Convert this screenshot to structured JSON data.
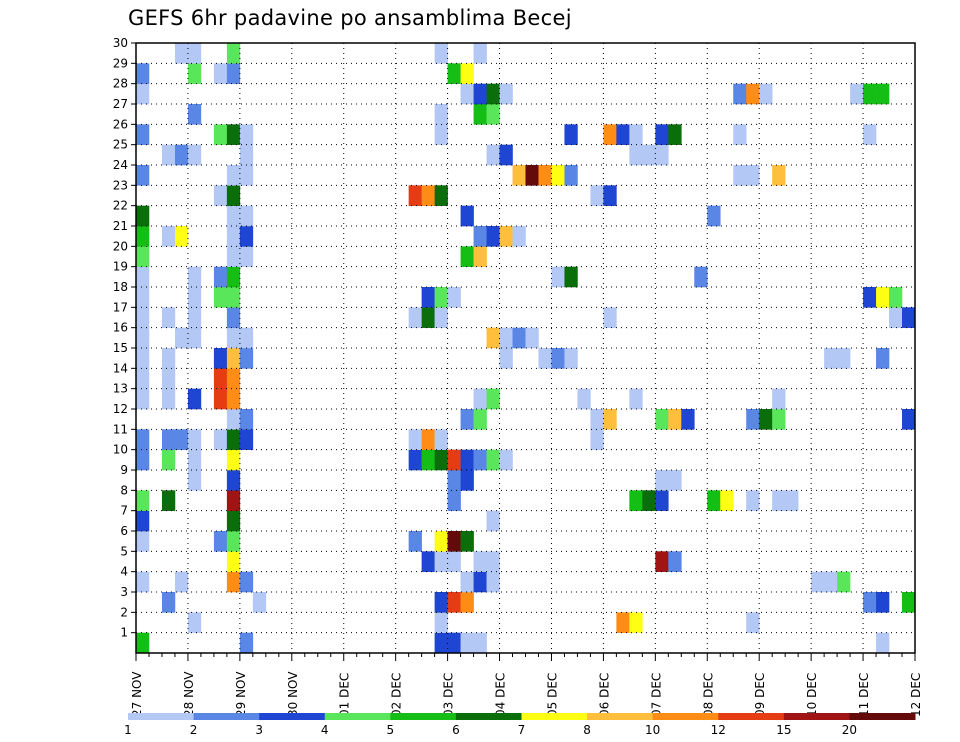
{
  "chart_data": {
    "type": "heatmap",
    "title": "GEFS 6hr padavine po ansamblima Becej",
    "xlabel": "",
    "ylabel": "",
    "x_tick_labels": [
      "27 NOV",
      "28 NOV",
      "29 NOV",
      "30 NOV",
      "01 DEC",
      "02 DEC",
      "03 DEC",
      "04 DEC",
      "05 DEC",
      "06 DEC",
      "07 DEC",
      "08 DEC",
      "09 DEC",
      "10 DEC",
      "11 DEC",
      "12 DEC"
    ],
    "y_tick_labels": [
      "1",
      "2",
      "3",
      "4",
      "5",
      "6",
      "7",
      "8",
      "9",
      "10",
      "11",
      "12",
      "13",
      "14",
      "15",
      "16",
      "17",
      "18",
      "19",
      "20",
      "21",
      "22",
      "23",
      "24",
      "25",
      "26",
      "27",
      "28",
      "29",
      "30"
    ],
    "x_range_steps": [
      0,
      60
    ],
    "y_range": [
      0,
      30
    ],
    "grid": true,
    "colorbar": {
      "tick_labels": [
        "1",
        "2",
        "3",
        "4",
        "5",
        "6",
        "7",
        "8",
        "10",
        "12",
        "15",
        "20"
      ],
      "colors": [
        "#b4c8f5",
        "#5a87e6",
        "#1e46d2",
        "#5ae65a",
        "#14be14",
        "#0a6e0a",
        "#ffff14",
        "#ffbe3c",
        "#ff8c14",
        "#e63c14",
        "#a01414",
        "#640a0a"
      ]
    },
    "cells_note": "each cell: [member, time_step(0=27 NOV 00z, 6h steps), color_class(1-12)]",
    "cells": [
      [
        1,
        0,
        5
      ],
      [
        1,
        8,
        2
      ],
      [
        1,
        23,
        3
      ],
      [
        1,
        24,
        3
      ],
      [
        1,
        25,
        1
      ],
      [
        1,
        26,
        1
      ],
      [
        1,
        57,
        1
      ],
      [
        2,
        4,
        1
      ],
      [
        2,
        23,
        1
      ],
      [
        2,
        37,
        9
      ],
      [
        2,
        38,
        7
      ],
      [
        2,
        47,
        1
      ],
      [
        3,
        2,
        2
      ],
      [
        3,
        9,
        1
      ],
      [
        3,
        23,
        3
      ],
      [
        3,
        24,
        10
      ],
      [
        3,
        25,
        9
      ],
      [
        3,
        56,
        2
      ],
      [
        3,
        57,
        3
      ],
      [
        3,
        59,
        5
      ],
      [
        4,
        0,
        1
      ],
      [
        4,
        3,
        1
      ],
      [
        4,
        7,
        9
      ],
      [
        4,
        8,
        2
      ],
      [
        4,
        25,
        1
      ],
      [
        4,
        26,
        3
      ],
      [
        4,
        27,
        1
      ],
      [
        4,
        52,
        1
      ],
      [
        4,
        53,
        1
      ],
      [
        4,
        54,
        4
      ],
      [
        5,
        7,
        7
      ],
      [
        5,
        22,
        3
      ],
      [
        5,
        23,
        1
      ],
      [
        5,
        24,
        1
      ],
      [
        5,
        26,
        1
      ],
      [
        5,
        27,
        1
      ],
      [
        5,
        40,
        11
      ],
      [
        5,
        41,
        2
      ],
      [
        6,
        0,
        1
      ],
      [
        6,
        6,
        2
      ],
      [
        6,
        7,
        4
      ],
      [
        6,
        21,
        2
      ],
      [
        6,
        23,
        7
      ],
      [
        6,
        24,
        12
      ],
      [
        6,
        25,
        6
      ],
      [
        7,
        0,
        3
      ],
      [
        7,
        7,
        6
      ],
      [
        7,
        27,
        1
      ],
      [
        8,
        0,
        4
      ],
      [
        8,
        2,
        6
      ],
      [
        8,
        7,
        11
      ],
      [
        8,
        24,
        2
      ],
      [
        8,
        38,
        5
      ],
      [
        8,
        39,
        6
      ],
      [
        8,
        40,
        3
      ],
      [
        8,
        44,
        5
      ],
      [
        8,
        45,
        7
      ],
      [
        8,
        47,
        1
      ],
      [
        8,
        49,
        1
      ],
      [
        8,
        50,
        1
      ],
      [
        9,
        4,
        1
      ],
      [
        9,
        7,
        3
      ],
      [
        9,
        24,
        2
      ],
      [
        9,
        25,
        3
      ],
      [
        9,
        40,
        1
      ],
      [
        9,
        41,
        1
      ],
      [
        10,
        0,
        2
      ],
      [
        10,
        2,
        4
      ],
      [
        10,
        4,
        1
      ],
      [
        10,
        7,
        7
      ],
      [
        10,
        21,
        3
      ],
      [
        10,
        22,
        5
      ],
      [
        10,
        23,
        6
      ],
      [
        10,
        24,
        10
      ],
      [
        10,
        25,
        3
      ],
      [
        10,
        26,
        2
      ],
      [
        10,
        27,
        4
      ],
      [
        10,
        28,
        1
      ],
      [
        11,
        0,
        2
      ],
      [
        11,
        2,
        2
      ],
      [
        11,
        3,
        2
      ],
      [
        11,
        4,
        1
      ],
      [
        11,
        6,
        1
      ],
      [
        11,
        7,
        6
      ],
      [
        11,
        8,
        3
      ],
      [
        11,
        21,
        1
      ],
      [
        11,
        22,
        9
      ],
      [
        11,
        23,
        1
      ],
      [
        11,
        35,
        1
      ],
      [
        12,
        7,
        1
      ],
      [
        12,
        8,
        2
      ],
      [
        12,
        25,
        2
      ],
      [
        12,
        26,
        4
      ],
      [
        12,
        35,
        1
      ],
      [
        12,
        36,
        8
      ],
      [
        12,
        40,
        4
      ],
      [
        12,
        41,
        8
      ],
      [
        12,
        42,
        3
      ],
      [
        12,
        47,
        2
      ],
      [
        12,
        48,
        6
      ],
      [
        12,
        49,
        4
      ],
      [
        12,
        59,
        3
      ],
      [
        13,
        0,
        1
      ],
      [
        13,
        2,
        1
      ],
      [
        13,
        4,
        3
      ],
      [
        13,
        6,
        10
      ],
      [
        13,
        7,
        9
      ],
      [
        13,
        26,
        1
      ],
      [
        13,
        27,
        4
      ],
      [
        13,
        34,
        1
      ],
      [
        13,
        38,
        1
      ],
      [
        13,
        49,
        1
      ],
      [
        14,
        0,
        1
      ],
      [
        14,
        2,
        1
      ],
      [
        14,
        6,
        10
      ],
      [
        14,
        7,
        9
      ],
      [
        15,
        0,
        1
      ],
      [
        15,
        2,
        1
      ],
      [
        15,
        6,
        3
      ],
      [
        15,
        7,
        8
      ],
      [
        15,
        8,
        2
      ],
      [
        15,
        28,
        1
      ],
      [
        15,
        31,
        1
      ],
      [
        15,
        32,
        2
      ],
      [
        15,
        33,
        1
      ],
      [
        15,
        53,
        1
      ],
      [
        15,
        54,
        1
      ],
      [
        15,
        57,
        2
      ],
      [
        16,
        0,
        1
      ],
      [
        16,
        3,
        1
      ],
      [
        16,
        4,
        1
      ],
      [
        16,
        7,
        1
      ],
      [
        16,
        8,
        1
      ],
      [
        16,
        27,
        8
      ],
      [
        16,
        28,
        1
      ],
      [
        16,
        29,
        2
      ],
      [
        16,
        30,
        1
      ],
      [
        17,
        0,
        1
      ],
      [
        17,
        2,
        1
      ],
      [
        17,
        4,
        1
      ],
      [
        17,
        7,
        2
      ],
      [
        17,
        21,
        1
      ],
      [
        17,
        22,
        6
      ],
      [
        17,
        23,
        1
      ],
      [
        17,
        36,
        1
      ],
      [
        17,
        58,
        1
      ],
      [
        17,
        59,
        3
      ],
      [
        18,
        0,
        1
      ],
      [
        18,
        4,
        1
      ],
      [
        18,
        6,
        4
      ],
      [
        18,
        7,
        4
      ],
      [
        18,
        22,
        3
      ],
      [
        18,
        23,
        4
      ],
      [
        18,
        24,
        1
      ],
      [
        18,
        56,
        3
      ],
      [
        18,
        57,
        7
      ],
      [
        18,
        58,
        4
      ],
      [
        19,
        0,
        1
      ],
      [
        19,
        4,
        1
      ],
      [
        19,
        6,
        2
      ],
      [
        19,
        7,
        5
      ],
      [
        19,
        32,
        1
      ],
      [
        19,
        33,
        6
      ],
      [
        19,
        43,
        2
      ],
      [
        20,
        0,
        4
      ],
      [
        20,
        7,
        1
      ],
      [
        20,
        8,
        1
      ],
      [
        20,
        25,
        5
      ],
      [
        20,
        26,
        8
      ],
      [
        21,
        0,
        5
      ],
      [
        21,
        2,
        1
      ],
      [
        21,
        3,
        7
      ],
      [
        21,
        7,
        1
      ],
      [
        21,
        8,
        3
      ],
      [
        21,
        26,
        2
      ],
      [
        21,
        27,
        3
      ],
      [
        21,
        28,
        8
      ],
      [
        21,
        29,
        1
      ],
      [
        22,
        0,
        6
      ],
      [
        22,
        7,
        1
      ],
      [
        22,
        8,
        1
      ],
      [
        22,
        25,
        3
      ],
      [
        22,
        44,
        2
      ],
      [
        23,
        6,
        1
      ],
      [
        23,
        7,
        6
      ],
      [
        23,
        21,
        10
      ],
      [
        23,
        22,
        9
      ],
      [
        23,
        23,
        6
      ],
      [
        23,
        35,
        1
      ],
      [
        23,
        36,
        3
      ],
      [
        24,
        0,
        2
      ],
      [
        24,
        7,
        1
      ],
      [
        24,
        8,
        1
      ],
      [
        24,
        29,
        8
      ],
      [
        24,
        30,
        12
      ],
      [
        24,
        31,
        9
      ],
      [
        24,
        32,
        7
      ],
      [
        24,
        33,
        2
      ],
      [
        24,
        46,
        1
      ],
      [
        24,
        47,
        1
      ],
      [
        24,
        49,
        8
      ],
      [
        25,
        2,
        1
      ],
      [
        25,
        3,
        2
      ],
      [
        25,
        4,
        1
      ],
      [
        25,
        8,
        1
      ],
      [
        25,
        27,
        1
      ],
      [
        25,
        28,
        3
      ],
      [
        25,
        38,
        1
      ],
      [
        25,
        39,
        1
      ],
      [
        25,
        40,
        1
      ],
      [
        26,
        0,
        2
      ],
      [
        26,
        6,
        4
      ],
      [
        26,
        7,
        6
      ],
      [
        26,
        8,
        1
      ],
      [
        26,
        23,
        1
      ],
      [
        26,
        33,
        3
      ],
      [
        26,
        36,
        9
      ],
      [
        26,
        37,
        3
      ],
      [
        26,
        38,
        1
      ],
      [
        26,
        40,
        3
      ],
      [
        26,
        41,
        6
      ],
      [
        26,
        46,
        1
      ],
      [
        26,
        56,
        1
      ],
      [
        27,
        4,
        2
      ],
      [
        27,
        23,
        1
      ],
      [
        27,
        26,
        5
      ],
      [
        27,
        27,
        4
      ],
      [
        28,
        0,
        1
      ],
      [
        28,
        25,
        1
      ],
      [
        28,
        26,
        3
      ],
      [
        28,
        27,
        6
      ],
      [
        28,
        28,
        1
      ],
      [
        28,
        46,
        2
      ],
      [
        28,
        47,
        9
      ],
      [
        28,
        48,
        1
      ],
      [
        28,
        55,
        1
      ],
      [
        28,
        56,
        5
      ],
      [
        28,
        57,
        5
      ],
      [
        29,
        0,
        2
      ],
      [
        29,
        4,
        4
      ],
      [
        29,
        6,
        1
      ],
      [
        29,
        7,
        2
      ],
      [
        29,
        24,
        5
      ],
      [
        29,
        25,
        7
      ],
      [
        30,
        3,
        1
      ],
      [
        30,
        4,
        1
      ],
      [
        30,
        7,
        4
      ],
      [
        30,
        23,
        1
      ],
      [
        30,
        26,
        1
      ]
    ]
  }
}
